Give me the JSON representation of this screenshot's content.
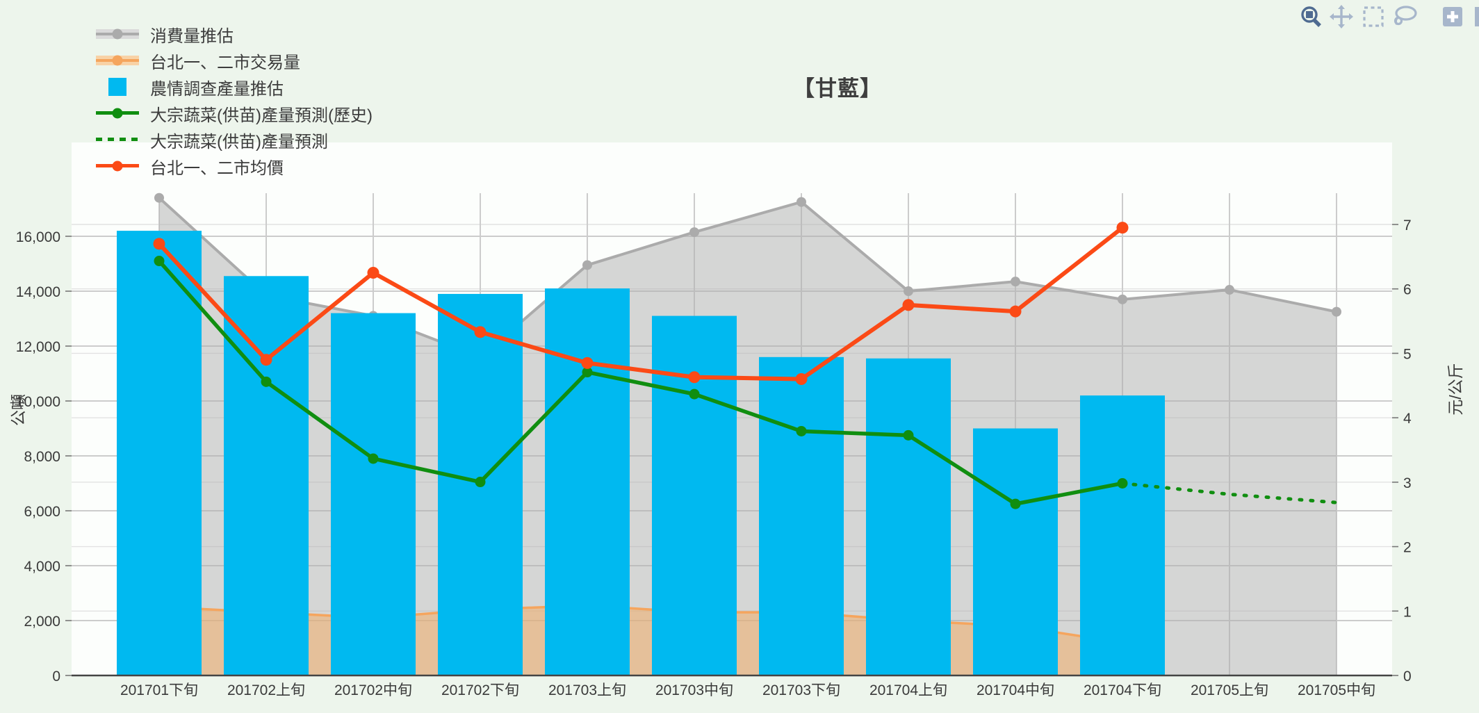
{
  "title": {
    "text": "【甘藍】"
  },
  "axes": {
    "left_title": "公噸",
    "right_title": "元/公斤",
    "left_ticks": [
      0,
      2000,
      4000,
      6000,
      8000,
      10000,
      12000,
      14000,
      16000
    ],
    "right_ticks": [
      0,
      1,
      2,
      3,
      4,
      5,
      6,
      7
    ]
  },
  "legend": {
    "items": [
      {
        "label": "消費量推估",
        "swatch": "gray-area-band"
      },
      {
        "label": "台北一、二市交易量",
        "swatch": "orange-area-band"
      },
      {
        "label": "農情調查產量推估",
        "swatch": "cyan-square"
      },
      {
        "label": "大宗蔬菜(供苗)產量預測(歷史)",
        "swatch": "green-line-dot"
      },
      {
        "label": "大宗蔬菜(供苗)產量預測",
        "swatch": "green-dotted-line"
      },
      {
        "label": "台北一、二市均價",
        "swatch": "red-line-dot"
      }
    ]
  },
  "toolbar": {
    "icons": [
      "zoom-icon",
      "pan-icon",
      "box-select-icon",
      "lasso-select-icon",
      "zoom-in-icon",
      "partial-button"
    ]
  },
  "colors": {
    "page_bg": "#edf5ec",
    "plot_bg": "#fcfefc",
    "bar": "#00b9f0",
    "green": "#108e10",
    "red": "#fb4a16",
    "gray_line": "#ababab",
    "gray_fill": "rgba(173,173,173,0.5)",
    "orange_line": "#f5a55e",
    "orange_fill": "rgba(242,174,105,0.55)",
    "grid_major": "#cccccc",
    "grid_minor": "#e2e2e2",
    "axis_line": "#444444",
    "tick_text": "#3a3a3a"
  },
  "chart_data": {
    "type": "combo",
    "title": "【甘藍】",
    "xlabel": "",
    "ylabel_left": "公噸",
    "ylabel_right": "元/公斤",
    "ylim_left": [
      0,
      17500
    ],
    "ylim_right": [
      0,
      7.5
    ],
    "grid": true,
    "legend_position": "top-left",
    "categories": [
      "201701下旬",
      "201702上旬",
      "201702中旬",
      "201702下旬",
      "201703上旬",
      "201703中旬",
      "201703下旬",
      "201704上旬",
      "201704中旬",
      "201704下旬",
      "201705上旬",
      "201705中旬"
    ],
    "series": [
      {
        "name": "消費量推估",
        "type": "area",
        "axis": "left",
        "values": [
          17400,
          13850,
          13100,
          11600,
          14950,
          16150,
          17250,
          14000,
          14350,
          13700,
          14050,
          13250
        ]
      },
      {
        "name": "台北一、二市交易量",
        "type": "area",
        "axis": "left",
        "values": [
          2500,
          2300,
          2100,
          2400,
          2550,
          2300,
          2300,
          2000,
          1800,
          1200,
          null,
          null
        ]
      },
      {
        "name": "農情調查產量推估",
        "type": "bar",
        "axis": "left",
        "values": [
          16200,
          14550,
          13200,
          13900,
          14100,
          13100,
          11600,
          11550,
          9000,
          10200,
          null,
          null
        ]
      },
      {
        "name": "大宗蔬菜(供苗)產量預測(歷史)",
        "type": "line",
        "axis": "left",
        "values": [
          15100,
          10700,
          7900,
          7050,
          11050,
          10250,
          8900,
          8750,
          6250,
          7000,
          null,
          null
        ]
      },
      {
        "name": "大宗蔬菜(供苗)產量預測",
        "type": "line-dotted",
        "axis": "left",
        "values": [
          null,
          null,
          null,
          null,
          null,
          null,
          null,
          null,
          null,
          7000,
          6600,
          6300
        ]
      },
      {
        "name": "台北一、二市均價",
        "type": "line",
        "axis": "right",
        "values": [
          6.7,
          4.9,
          6.25,
          5.33,
          4.85,
          4.63,
          4.6,
          5.75,
          5.65,
          6.95,
          null,
          null
        ]
      }
    ]
  }
}
